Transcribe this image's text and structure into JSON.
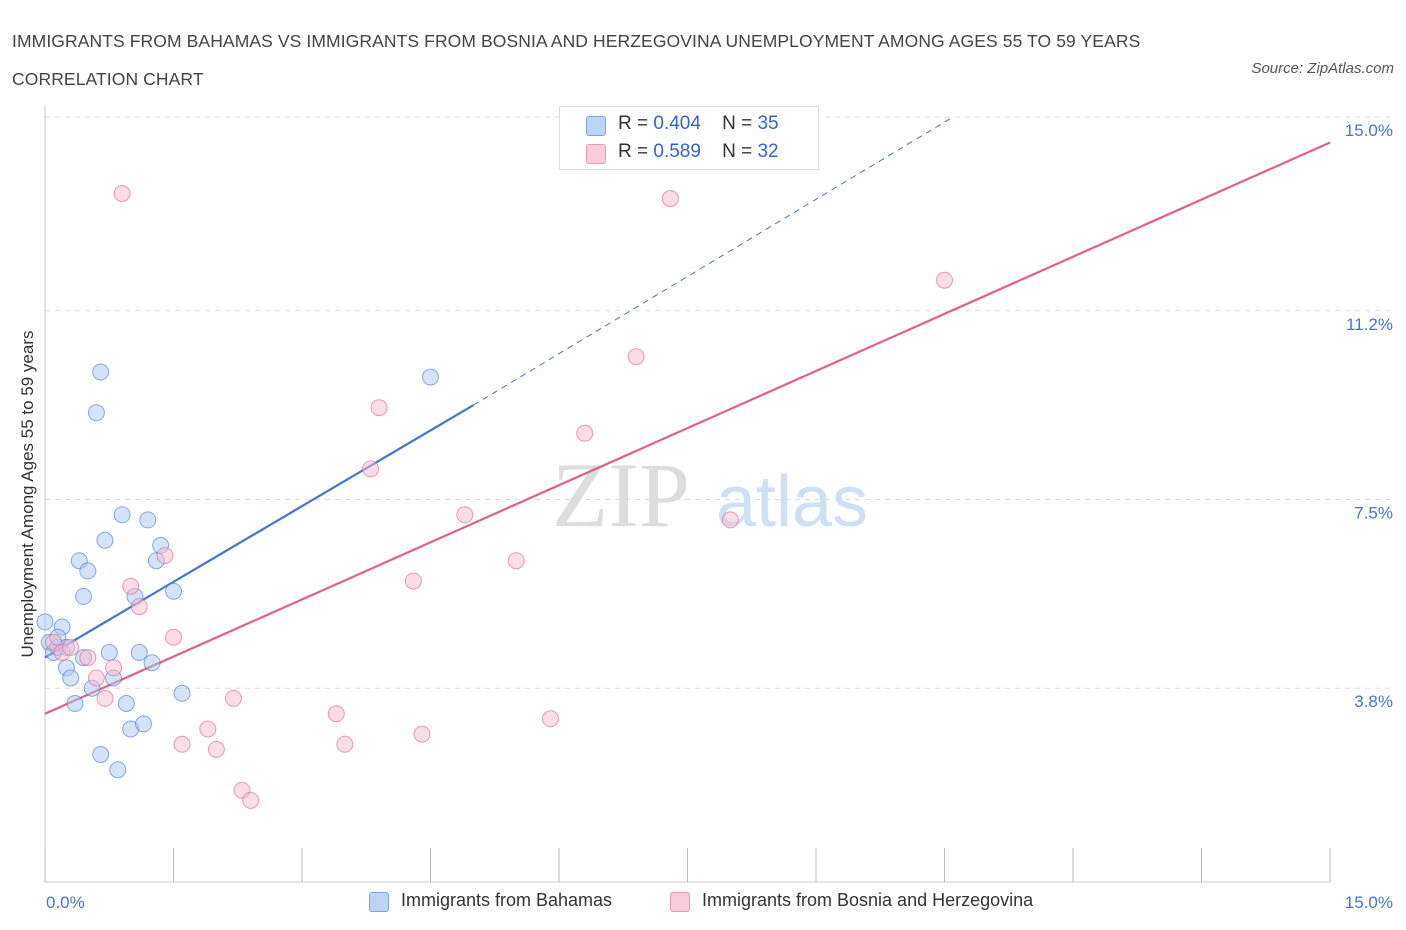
{
  "title": "IMMIGRANTS FROM BAHAMAS VS IMMIGRANTS FROM BOSNIA AND HERZEGOVINA UNEMPLOYMENT AMONG AGES 55 TO 59 YEARS CORRELATION CHART",
  "source": "Source: ZipAtlas.com",
  "watermark": {
    "zip": "ZIP",
    "atlas": "atlas"
  },
  "legend": {
    "rows": [
      {
        "r_label": "R =",
        "r_value": "0.404",
        "n_label": "N =",
        "n_value": "35",
        "color": "#aac8f0"
      },
      {
        "r_label": "R =",
        "r_value": "0.589",
        "n_label": "N =",
        "n_value": "32",
        "color": "#f5bccd"
      }
    ]
  },
  "bottom_legend": [
    {
      "label": "Immigrants from Bahamas",
      "color": "#aac8f0"
    },
    {
      "label": "Immigrants from Bosnia and Herzegovina",
      "color": "#f5bccd"
    }
  ],
  "chart_data": {
    "type": "scatter",
    "title": "IMMIGRANTS FROM BAHAMAS VS IMMIGRANTS FROM BOSNIA AND HERZEGOVINA UNEMPLOYMENT AMONG AGES 55 TO 59 YEARS CORRELATION CHART",
    "xlabel": "",
    "ylabel": "Unemployment Among Ages 55 to 59 years",
    "xlim": [
      0,
      15
    ],
    "ylim": [
      0,
      15
    ],
    "y_ticks": [
      {
        "value": 3.8,
        "label": "3.8%"
      },
      {
        "value": 7.5,
        "label": "7.5%"
      },
      {
        "value": 11.2,
        "label": "11.2%"
      },
      {
        "value": 15.0,
        "label": "15.0%"
      }
    ],
    "x_tick_labels": {
      "min": "0.0%",
      "max": "15.0%"
    },
    "grid": true,
    "series": [
      {
        "name": "Immigrants from Bahamas",
        "color": "#4477cc",
        "fill": "#aac8f0",
        "x": [
          0.0,
          0.05,
          0.1,
          0.15,
          0.2,
          0.25,
          0.3,
          0.35,
          0.4,
          0.45,
          0.5,
          0.55,
          0.6,
          0.65,
          0.7,
          0.75,
          0.8,
          0.85,
          0.9,
          0.95,
          1.0,
          1.05,
          1.1,
          1.15,
          1.2,
          1.25,
          1.3,
          1.35,
          1.5,
          1.6,
          0.15,
          0.25,
          0.45,
          0.65,
          4.5
        ],
        "y": [
          5.1,
          4.7,
          4.5,
          4.6,
          5.0,
          4.2,
          4.0,
          3.5,
          6.3,
          5.6,
          6.1,
          3.8,
          9.2,
          2.5,
          6.7,
          4.5,
          4.0,
          2.2,
          7.2,
          3.5,
          3.0,
          5.6,
          4.5,
          3.1,
          7.1,
          4.3,
          6.3,
          6.6,
          5.7,
          3.7,
          4.8,
          4.6,
          4.4,
          10.0,
          9.9
        ],
        "trend": {
          "x": [
            0.0,
            5.0
          ],
          "y": [
            4.4,
            9.35
          ],
          "dashed_to": {
            "x": 10.6,
            "y": 15.0
          }
        }
      },
      {
        "name": "Immigrants from Bosnia and Herzegovina",
        "color": "#e0608a",
        "fill": "#f5bccd",
        "x": [
          0.1,
          0.2,
          0.3,
          0.5,
          0.6,
          0.7,
          0.8,
          1.0,
          1.1,
          1.4,
          1.5,
          1.6,
          1.9,
          2.0,
          2.2,
          2.3,
          2.4,
          3.4,
          3.5,
          3.8,
          3.9,
          4.3,
          4.4,
          4.9,
          5.5,
          5.9,
          6.3,
          6.9,
          7.3,
          8.0,
          10.5,
          0.9
        ],
        "y": [
          4.7,
          4.5,
          4.6,
          4.4,
          4.0,
          3.6,
          4.2,
          5.8,
          5.4,
          6.4,
          4.8,
          2.7,
          3.0,
          2.6,
          3.6,
          1.8,
          1.6,
          3.3,
          2.7,
          8.1,
          9.3,
          5.9,
          2.9,
          7.2,
          6.3,
          3.2,
          8.8,
          10.3,
          13.4,
          7.1,
          11.8,
          13.5
        ],
        "trend": {
          "x": [
            0.0,
            15.0
          ],
          "y": [
            3.3,
            14.5
          ]
        }
      }
    ]
  }
}
